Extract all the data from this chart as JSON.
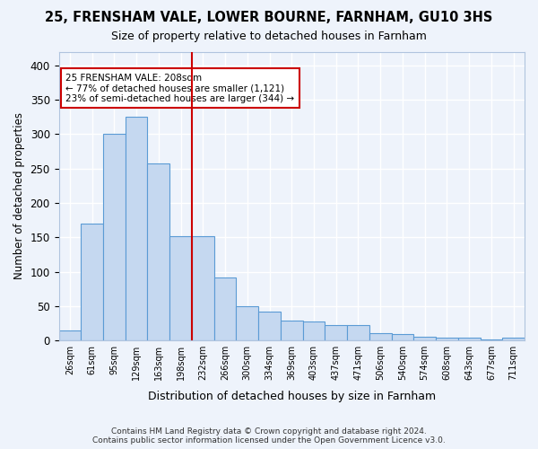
{
  "title": "25, FRENSHAM VALE, LOWER BOURNE, FARNHAM, GU10 3HS",
  "subtitle": "Size of property relative to detached houses in Farnham",
  "xlabel": "Distribution of detached houses by size in Farnham",
  "ylabel": "Number of detached properties",
  "bar_values": [
    14,
    170,
    300,
    325,
    257,
    152,
    152,
    92,
    50,
    42,
    29,
    28,
    22,
    22,
    10,
    9,
    5,
    4,
    4,
    2,
    4
  ],
  "bin_labels": [
    "26sqm",
    "61sqm",
    "95sqm",
    "129sqm",
    "163sqm",
    "198sqm",
    "232sqm",
    "266sqm",
    "300sqm",
    "334sqm",
    "369sqm",
    "403sqm",
    "437sqm",
    "471sqm",
    "506sqm",
    "540sqm",
    "574sqm",
    "608sqm",
    "643sqm",
    "677sqm",
    "711sqm"
  ],
  "bar_color": "#c5d8f0",
  "bar_edge_color": "#5b9bd5",
  "vline_x": 5.5,
  "vline_color": "#cc0000",
  "annotation_text": "25 FRENSHAM VALE: 208sqm\n← 77% of detached houses are smaller (1,121)\n23% of semi-detached houses are larger (344) →",
  "annotation_box_color": "white",
  "annotation_box_edge": "#cc0000",
  "ylim": [
    0,
    420
  ],
  "yticks": [
    0,
    50,
    100,
    150,
    200,
    250,
    300,
    350,
    400
  ],
  "footer_line1": "Contains HM Land Registry data © Crown copyright and database right 2024.",
  "footer_line2": "Contains public sector information licensed under the Open Government Licence v3.0.",
  "bg_color": "#eef3fb",
  "grid_color": "#ffffff"
}
